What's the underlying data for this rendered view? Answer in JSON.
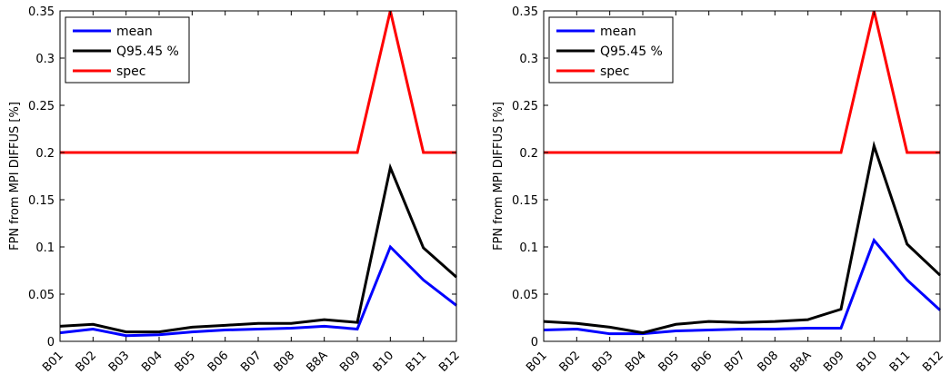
{
  "chart_data": [
    {
      "type": "line",
      "ylabel": "FPN from MPI DIFFUS [%]",
      "xlabel": "",
      "title": "",
      "categories": [
        "B01",
        "B02",
        "B03",
        "B04",
        "B05",
        "B06",
        "B07",
        "B08",
        "B8A",
        "B09",
        "B10",
        "B11",
        "B12"
      ],
      "ylim": [
        0,
        0.35
      ],
      "yticks": [
        0,
        0.05,
        0.1,
        0.15,
        0.2,
        0.25,
        0.3,
        0.35
      ],
      "ytick_labels": [
        "0",
        "0.05",
        "0.1",
        "0.15",
        "0.2",
        "0.25",
        "0.3",
        "0.35"
      ],
      "grid": false,
      "legend_position": "top-left",
      "series": [
        {
          "name": "mean",
          "color": "#0000ff",
          "values": [
            0.009,
            0.013,
            0.006,
            0.007,
            0.01,
            0.012,
            0.013,
            0.014,
            0.016,
            0.013,
            0.1,
            0.065,
            0.038
          ]
        },
        {
          "name": "Q95.45 %",
          "color": "#000000",
          "values": [
            0.016,
            0.018,
            0.01,
            0.01,
            0.015,
            0.017,
            0.019,
            0.019,
            0.023,
            0.02,
            0.184,
            0.099,
            0.068
          ]
        },
        {
          "name": "spec",
          "color": "#ff0000",
          "values": [
            0.2,
            0.2,
            0.2,
            0.2,
            0.2,
            0.2,
            0.2,
            0.2,
            0.2,
            0.2,
            0.35,
            0.2,
            0.2
          ]
        }
      ]
    },
    {
      "type": "line",
      "ylabel": "FPN from MPI DIFFUS [%]",
      "xlabel": "",
      "title": "",
      "categories": [
        "B01",
        "B02",
        "B03",
        "B04",
        "B05",
        "B06",
        "B07",
        "B08",
        "B8A",
        "B09",
        "B10",
        "B11",
        "B12"
      ],
      "ylim": [
        0,
        0.35
      ],
      "yticks": [
        0,
        0.05,
        0.1,
        0.15,
        0.2,
        0.25,
        0.3,
        0.35
      ],
      "ytick_labels": [
        "0",
        "0.05",
        "0.1",
        "0.15",
        "0.2",
        "0.25",
        "0.3",
        "0.35"
      ],
      "grid": false,
      "legend_position": "top-left",
      "series": [
        {
          "name": "mean",
          "color": "#0000ff",
          "values": [
            0.012,
            0.013,
            0.008,
            0.008,
            0.011,
            0.012,
            0.013,
            0.013,
            0.014,
            0.014,
            0.107,
            0.065,
            0.033
          ]
        },
        {
          "name": "Q95.45 %",
          "color": "#000000",
          "values": [
            0.021,
            0.019,
            0.015,
            0.009,
            0.018,
            0.021,
            0.02,
            0.021,
            0.023,
            0.034,
            0.207,
            0.103,
            0.07
          ]
        },
        {
          "name": "spec",
          "color": "#ff0000",
          "values": [
            0.2,
            0.2,
            0.2,
            0.2,
            0.2,
            0.2,
            0.2,
            0.2,
            0.2,
            0.2,
            0.35,
            0.2,
            0.2
          ]
        }
      ]
    }
  ]
}
